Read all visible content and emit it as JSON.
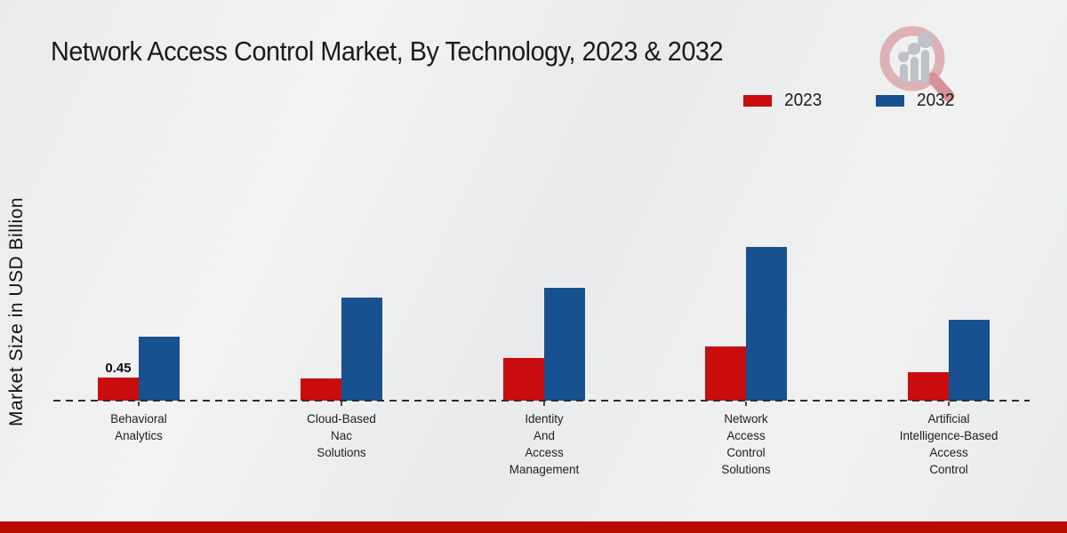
{
  "title": "Network Access Control Market, By Technology, 2023 & 2032",
  "y_axis_label": "Market Size in USD Billion",
  "legend": {
    "items": [
      {
        "label": "2023",
        "color": "#c90d0e"
      },
      {
        "label": "2032",
        "color": "#17518f"
      }
    ],
    "position": "top-right"
  },
  "colors": {
    "series_2023": "#c90d0e",
    "series_2032": "#17518f",
    "footer_bar": "#ba0b01",
    "axis_dash": "#2e2e2e",
    "watermark_pink": "#ddabaf",
    "watermark_gray": "#b9bdc3"
  },
  "watermark_icon": "magnifier-bar-chart-logo",
  "chart_data": {
    "type": "bar",
    "title": "Network Access Control Market, By Technology, 2023 & 2032",
    "xlabel": "",
    "ylabel": "Market Size in USD Billion",
    "unit": "USD Billion",
    "legend_position": "top-right",
    "grid": false,
    "baseline_style": "dashed",
    "categories": [
      "Behavioral Analytics",
      "Cloud-Based Nac Solutions",
      "Identity And Access Management",
      "Network Access Control Solutions",
      "Artificial Intelligence-Based Access Control"
    ],
    "category_lines": [
      [
        "Behavioral",
        "Analytics"
      ],
      [
        "Cloud-Based",
        "Nac",
        "Solutions"
      ],
      [
        "Identity",
        "And",
        "Access",
        "Management"
      ],
      [
        "Network",
        "Access",
        "Control",
        "Solutions"
      ],
      [
        "Artificial",
        "Intelligence-Based",
        "Access",
        "Control"
      ]
    ],
    "series": [
      {
        "name": "2023",
        "color": "#c90d0e",
        "values": [
          0.45,
          0.43,
          0.83,
          1.06,
          0.55
        ]
      },
      {
        "name": "2032",
        "color": "#17518f",
        "values": [
          1.25,
          2.0,
          2.2,
          3.0,
          1.58
        ]
      }
    ],
    "shown_value_labels": [
      {
        "series": "2023",
        "category_index": 0,
        "text": "0.45"
      }
    ],
    "ylim": [
      0,
      3.2
    ]
  }
}
